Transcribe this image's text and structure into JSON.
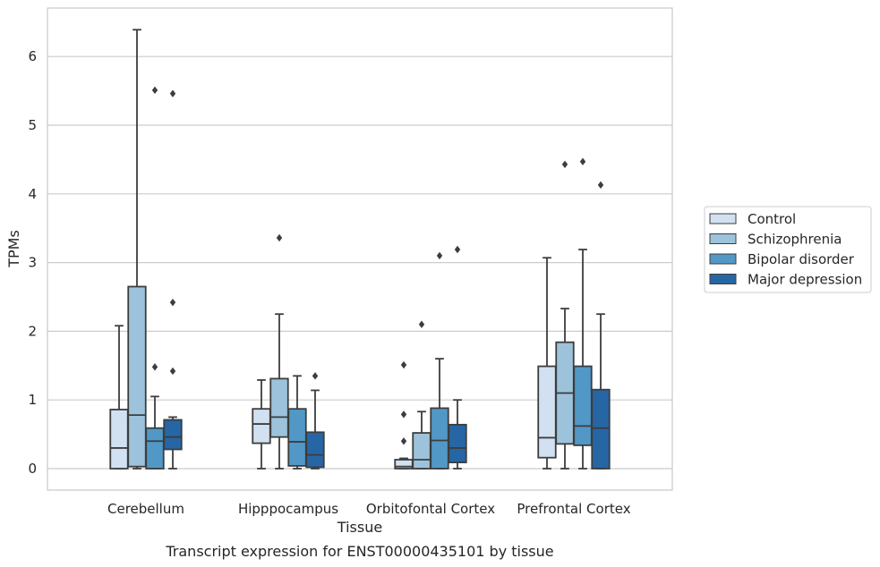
{
  "chart_data": {
    "type": "box",
    "caption": "Transcript expression for ENST00000435101 by tissue",
    "xlabel": "Tissue",
    "ylabel": "TPMs",
    "ylim": [
      -0.3,
      6.7
    ],
    "yticks": [
      "0",
      "1",
      "2",
      "3",
      "4",
      "5",
      "6"
    ],
    "grid": "horizontal",
    "legend_position": "right",
    "categories": [
      "Cerebellum",
      "Hipppocampus",
      "Orbitofontal Cortex",
      "Prefrontal Cortex"
    ],
    "series": [
      {
        "name": "Control",
        "color": "#d1e1f1",
        "boxes": [
          {
            "whislo": 0.0,
            "q1": 0.0,
            "med": 0.3,
            "q3": 0.86,
            "whishi": 2.08,
            "fliers": []
          },
          {
            "whislo": 0.0,
            "q1": 0.37,
            "med": 0.65,
            "q3": 0.87,
            "whishi": 1.29,
            "fliers": []
          },
          {
            "whislo": 0.0,
            "q1": 0.0,
            "med": 0.03,
            "q3": 0.13,
            "whishi": 0.15,
            "fliers": [
              1.51,
              0.79,
              0.4
            ]
          },
          {
            "whislo": 0.0,
            "q1": 0.16,
            "med": 0.45,
            "q3": 1.49,
            "whishi": 3.07,
            "fliers": []
          }
        ]
      },
      {
        "name": "Schizophrenia",
        "color": "#9cc3db",
        "boxes": [
          {
            "whislo": 0.0,
            "q1": 0.03,
            "med": 0.78,
            "q3": 2.65,
            "whishi": 6.39,
            "fliers": []
          },
          {
            "whislo": 0.0,
            "q1": 0.46,
            "med": 0.75,
            "q3": 1.31,
            "whishi": 2.25,
            "fliers": [
              3.36
            ]
          },
          {
            "whislo": 0.0,
            "q1": 0.0,
            "med": 0.13,
            "q3": 0.52,
            "whishi": 0.83,
            "fliers": [
              2.1
            ]
          },
          {
            "whislo": 0.0,
            "q1": 0.36,
            "med": 1.1,
            "q3": 1.84,
            "whishi": 2.33,
            "fliers": [
              4.43
            ]
          }
        ]
      },
      {
        "name": "Bipolar disorder",
        "color": "#5298c7",
        "boxes": [
          {
            "whislo": 0.0,
            "q1": 0.0,
            "med": 0.4,
            "q3": 0.59,
            "whishi": 1.05,
            "fliers": [
              5.51,
              1.48
            ]
          },
          {
            "whislo": 0.0,
            "q1": 0.04,
            "med": 0.39,
            "q3": 0.87,
            "whishi": 1.35,
            "fliers": []
          },
          {
            "whislo": 0.0,
            "q1": 0.0,
            "med": 0.41,
            "q3": 0.88,
            "whishi": 1.6,
            "fliers": [
              3.1
            ]
          },
          {
            "whislo": 0.0,
            "q1": 0.34,
            "med": 0.62,
            "q3": 1.49,
            "whishi": 3.19,
            "fliers": [
              4.47
            ]
          }
        ]
      },
      {
        "name": "Major depression",
        "color": "#2766a5",
        "boxes": [
          {
            "whislo": 0.0,
            "q1": 0.28,
            "med": 0.46,
            "q3": 0.71,
            "whishi": 0.75,
            "fliers": [
              5.46,
              2.42,
              1.42
            ]
          },
          {
            "whislo": 0.0,
            "q1": 0.02,
            "med": 0.2,
            "q3": 0.53,
            "whishi": 1.14,
            "fliers": [
              1.35
            ]
          },
          {
            "whislo": 0.0,
            "q1": 0.09,
            "med": 0.3,
            "q3": 0.64,
            "whishi": 1.0,
            "fliers": [
              3.19
            ]
          },
          {
            "whislo": 0.0,
            "q1": 0.0,
            "med": 0.59,
            "q3": 1.15,
            "whishi": 2.25,
            "fliers": [
              4.13
            ]
          }
        ]
      }
    ]
  }
}
